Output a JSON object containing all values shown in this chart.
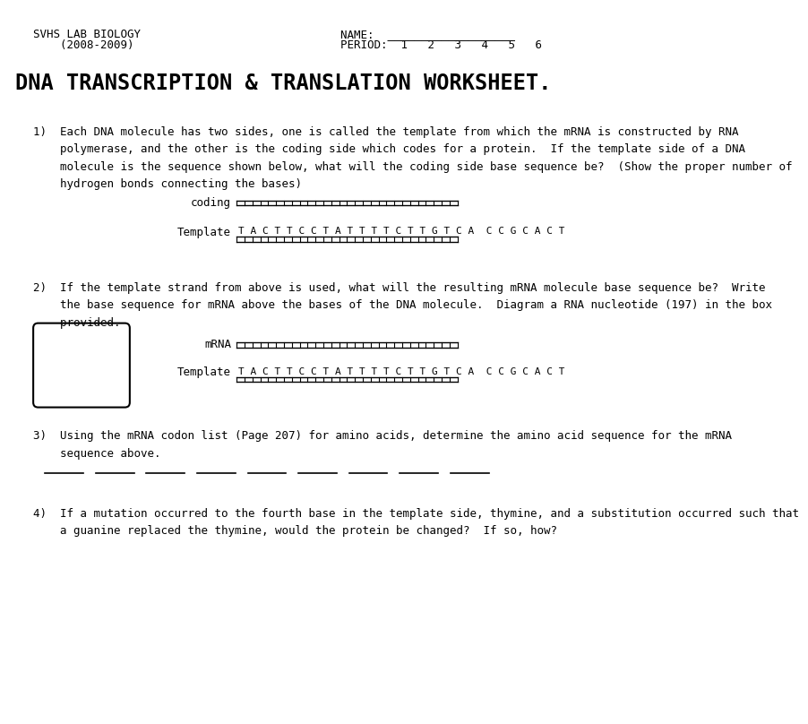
{
  "bg_color": "#ffffff",
  "text_color": "#000000",
  "header_left_line1": "SVHS LAB BIOLOGY",
  "header_left_line2": "    (2008-2009)",
  "header_right_line1": "NAME:  ___________________",
  "header_right_line2": "PERIOD:  1   2   3   4   5   6",
  "title": "DNA TRANSCRIPTION & TRANSLATION WORKSHEET.",
  "q1_text": "1)  Each DNA molecule has two sides, one is called the template from which the mRNA is constructed by RNA\n    polymerase, and the other is the coding side which codes for a protein.  If the template side of a DNA\n    molecule is the sequence shown below, what will the coding side base sequence be?  (Show the proper number of\n    hydrogen bonds connecting the bases)",
  "coding_label": "coding",
  "template_label": "Template",
  "dna_sequence": "T A C T T C C T A T T T T C T T G T C A  C C G C A C T",
  "tick_count": 28,
  "q2_text": "2)  If the template strand from above is used, what will the resulting mRNA molecule base sequence be?  Write\n    the base sequence for mRNA above the bases of the DNA molecule.  Diagram a RNA nucleotide (197) in the box\n    provided.",
  "mrna_label": "mRNA",
  "template_label2": "Template",
  "dna_sequence2": "T A C T T C C T A T T T T C T T G T C A  C C G C A C T",
  "q3_text": "3)  Using the mRNA codon list (Page 207) for amino acids, determine the amino acid sequence for the mRNA\n    sequence above.",
  "blank_count": 9,
  "q4_text": "4)  If a mutation occurred to the fourth base in the template side, thymine, and a substitution occurred such that\n    a guanine replaced the thymine, would the protein be changed?  If so, how?"
}
